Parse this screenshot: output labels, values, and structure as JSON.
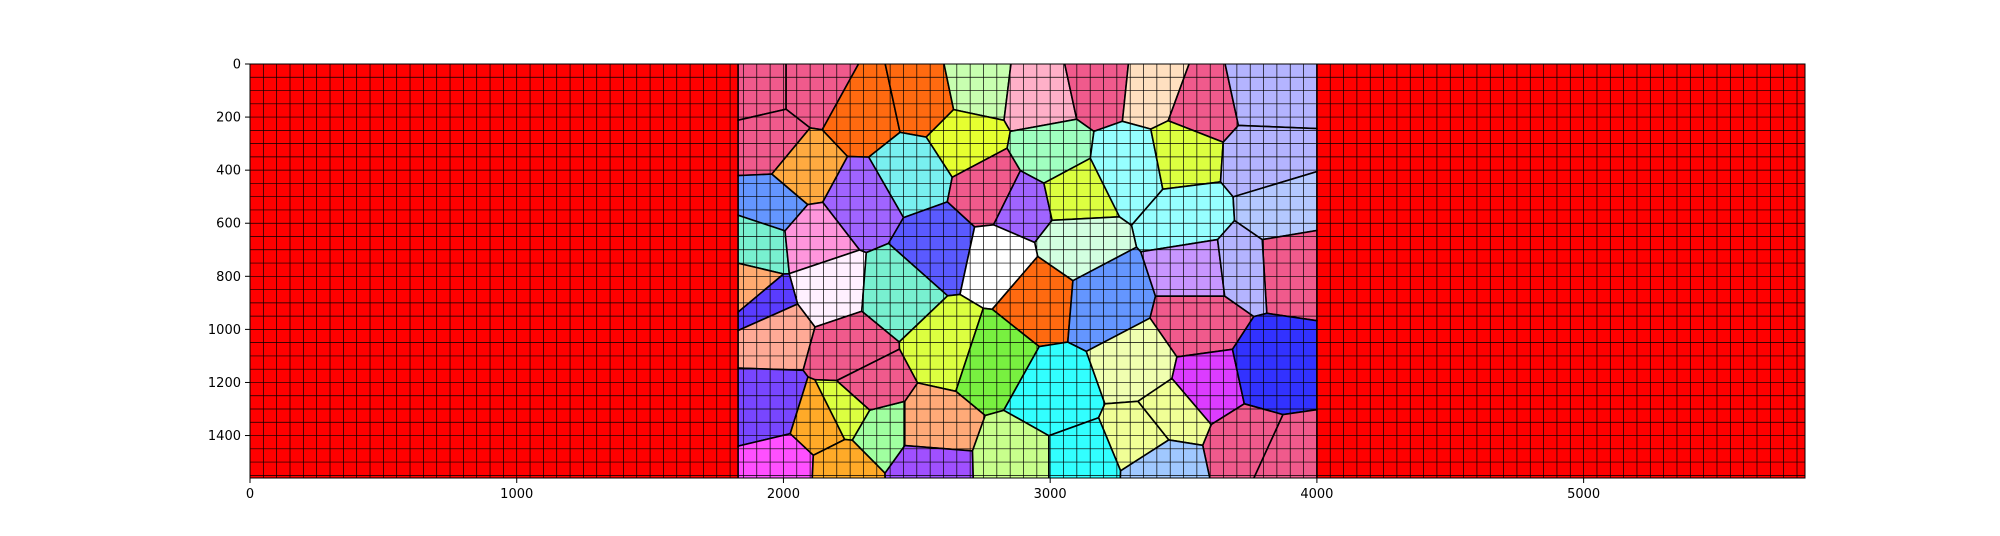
{
  "chart_data": {
    "type": "heatmap",
    "title": "",
    "xlabel": "",
    "ylabel": "",
    "xlim": [
      0,
      5830
    ],
    "ylim": [
      1560,
      0
    ],
    "x_ticks": [
      0,
      1000,
      2000,
      3000,
      4000,
      5000
    ],
    "y_ticks": [
      0,
      200,
      400,
      600,
      800,
      1000,
      1200,
      1400
    ],
    "x_tick_labels": [
      "0",
      "1000",
      "2000",
      "3000",
      "4000",
      "5000"
    ],
    "y_tick_labels": [
      "0",
      "200",
      "400",
      "600",
      "800",
      "1000",
      "1200",
      "1400"
    ],
    "grid_spacing": 50,
    "background_region_color": "#ff0000",
    "mesh_line_color": "#000000",
    "grains": [
      {
        "x": 1900,
        "y": 80,
        "color": "#f05a8c"
      },
      {
        "x": 2120,
        "y": 80,
        "color": "#f05a8c"
      },
      {
        "x": 2300,
        "y": 180,
        "color": "#ff6a10"
      },
      {
        "x": 2530,
        "y": 130,
        "color": "#ff6a10"
      },
      {
        "x": 2720,
        "y": 90,
        "color": "#c8ffb0"
      },
      {
        "x": 2960,
        "y": 120,
        "color": "#ffb0c8"
      },
      {
        "x": 3190,
        "y": 70,
        "color": "#f05a8c"
      },
      {
        "x": 3380,
        "y": 90,
        "color": "#ffe0c0"
      },
      {
        "x": 3570,
        "y": 160,
        "color": "#f05a8c"
      },
      {
        "x": 3800,
        "y": 110,
        "color": "#b4b4ff"
      },
      {
        "x": 2680,
        "y": 280,
        "color": "#e6ff30"
      },
      {
        "x": 1950,
        "y": 300,
        "color": "#f05a8c"
      },
      {
        "x": 2070,
        "y": 400,
        "color": "#ffaa40"
      },
      {
        "x": 2480,
        "y": 410,
        "color": "#78f0f0"
      },
      {
        "x": 2780,
        "y": 470,
        "color": "#f05a8c"
      },
      {
        "x": 3000,
        "y": 340,
        "color": "#a0ffc0"
      },
      {
        "x": 3300,
        "y": 380,
        "color": "#96ffff"
      },
      {
        "x": 3500,
        "y": 340,
        "color": "#dcff40"
      },
      {
        "x": 3790,
        "y": 360,
        "color": "#b4b4ff"
      },
      {
        "x": 1960,
        "y": 530,
        "color": "#6496ff"
      },
      {
        "x": 2290,
        "y": 520,
        "color": "#a064ff"
      },
      {
        "x": 2900,
        "y": 530,
        "color": "#a064ff"
      },
      {
        "x": 3080,
        "y": 490,
        "color": "#dcff40"
      },
      {
        "x": 3530,
        "y": 580,
        "color": "#96ffff"
      },
      {
        "x": 3850,
        "y": 560,
        "color": "#b4c8ff"
      },
      {
        "x": 1910,
        "y": 680,
        "color": "#78f0d0"
      },
      {
        "x": 2110,
        "y": 660,
        "color": "#ff96dc"
      },
      {
        "x": 2580,
        "y": 690,
        "color": "#5a5aff"
      },
      {
        "x": 3090,
        "y": 680,
        "color": "#d2ffe0"
      },
      {
        "x": 3880,
        "y": 740,
        "color": "#f05a8c"
      },
      {
        "x": 2170,
        "y": 840,
        "color": "#fff0ff"
      },
      {
        "x": 2430,
        "y": 860,
        "color": "#78f0d0"
      },
      {
        "x": 2810,
        "y": 740,
        "color": "#ffffff"
      },
      {
        "x": 2960,
        "y": 870,
        "color": "#ff6a10"
      },
      {
        "x": 3200,
        "y": 890,
        "color": "#6496ff"
      },
      {
        "x": 3560,
        "y": 770,
        "color": "#c896ff"
      },
      {
        "x": 3720,
        "y": 750,
        "color": "#b4b4ff"
      },
      {
        "x": 1870,
        "y": 850,
        "color": "#ffaa70"
      },
      {
        "x": 1920,
        "y": 910,
        "color": "#5a3cff"
      },
      {
        "x": 1960,
        "y": 1000,
        "color": "#ffaa96"
      },
      {
        "x": 2250,
        "y": 1080,
        "color": "#f05a8c"
      },
      {
        "x": 2620,
        "y": 1060,
        "color": "#dcff40"
      },
      {
        "x": 2770,
        "y": 1110,
        "color": "#78f040"
      },
      {
        "x": 3020,
        "y": 1250,
        "color": "#32ffff"
      },
      {
        "x": 3560,
        "y": 980,
        "color": "#f05a8c"
      },
      {
        "x": 3330,
        "y": 1140,
        "color": "#f0ffb0"
      },
      {
        "x": 3590,
        "y": 1200,
        "color": "#dc3cff"
      },
      {
        "x": 3820,
        "y": 1150,
        "color": "#3232ff"
      },
      {
        "x": 1950,
        "y": 1300,
        "color": "#7846ff"
      },
      {
        "x": 2140,
        "y": 1360,
        "color": "#ffaa28"
      },
      {
        "x": 2240,
        "y": 1310,
        "color": "#dcff40"
      },
      {
        "x": 2360,
        "y": 1380,
        "color": "#a0ffa0"
      },
      {
        "x": 2550,
        "y": 1380,
        "color": "#ffaa78"
      },
      {
        "x": 2320,
        "y": 1220,
        "color": "#f05a8c"
      },
      {
        "x": 3350,
        "y": 1400,
        "color": "#f0ff96"
      },
      {
        "x": 3740,
        "y": 1440,
        "color": "#f05a8c"
      },
      {
        "x": 3450,
        "y": 1320,
        "color": "#f0ff96"
      },
      {
        "x": 2000,
        "y": 1510,
        "color": "#ff50ff"
      },
      {
        "x": 2220,
        "y": 1520,
        "color": "#ffaa28"
      },
      {
        "x": 2540,
        "y": 1510,
        "color": "#a050ff"
      },
      {
        "x": 2880,
        "y": 1500,
        "color": "#c8ff8c"
      },
      {
        "x": 3110,
        "y": 1500,
        "color": "#32ffff"
      },
      {
        "x": 3420,
        "y": 1510,
        "color": "#a0c8ff"
      },
      {
        "x": 3870,
        "y": 1500,
        "color": "#f05a8c"
      }
    ]
  }
}
